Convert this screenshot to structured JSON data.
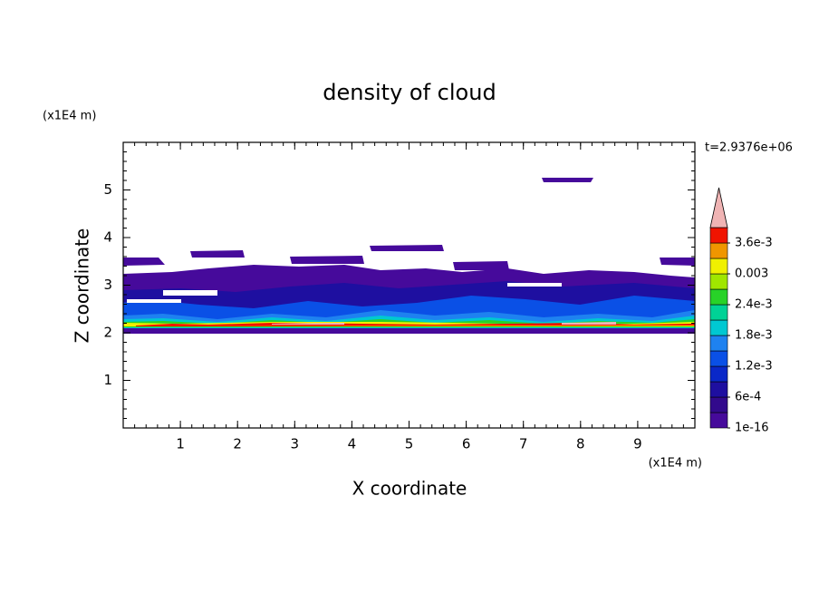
{
  "chart_data": {
    "type": "contour",
    "title": "density of cloud",
    "x_label": "X coordinate",
    "y_label": "Z coordinate",
    "x_unit": "(x1E4 m)",
    "y_unit": "(x1E4 m)",
    "annotation": "t=2.9376e+06",
    "xlim": [
      0,
      10
    ],
    "ylim": [
      0,
      6
    ],
    "xticks": [
      1,
      2,
      3,
      4,
      5,
      6,
      7,
      8,
      9
    ],
    "yticks": [
      1,
      2,
      3,
      4,
      5
    ],
    "xminor_step": 0.2,
    "yminor_step": 0.2,
    "colorbar": {
      "clim": [
        1e-16,
        0.0039
      ],
      "ticks": [
        1e-16,
        {
          "value": 0.0006,
          "label": "6e-4"
        },
        {
          "value": 0.0012,
          "label": "1.2e-3"
        },
        {
          "value": 0.0018,
          "label": "1.8e-3"
        },
        {
          "value": 0.0024,
          "label": "2.4e-3"
        },
        0.003,
        {
          "value": 0.0036,
          "label": "3.6e-3"
        }
      ],
      "colors": [
        "#460a9b",
        "#320a8c",
        "#1e0fa0",
        "#0a28c8",
        "#0a50e6",
        "#1e82f0",
        "#00c8d2",
        "#00d296",
        "#28d228",
        "#a0e600",
        "#f0f000",
        "#f09600",
        "#f01400"
      ],
      "extend_color": "#f0b4b4"
    }
  }
}
